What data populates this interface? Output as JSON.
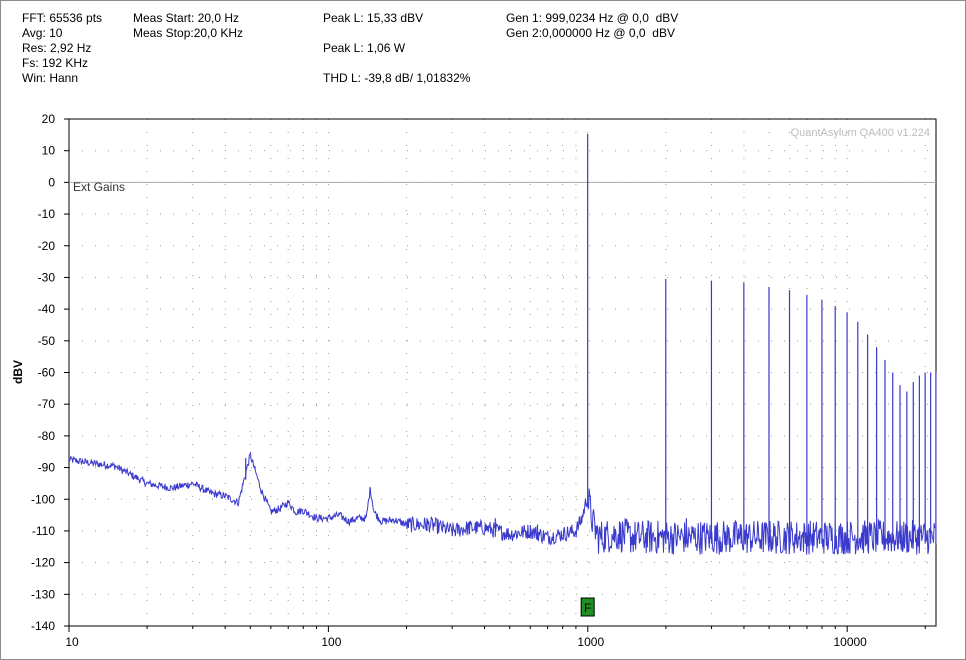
{
  "readouts": {
    "fft": "FFT: 65536 pts",
    "avg": "Avg: 10",
    "res": "Res: 2,92 Hz",
    "fs": "Fs: 192 KHz",
    "win": "Win: Hann",
    "meas_start": "Meas Start: 20,0 Hz",
    "meas_stop": "Meas Stop:20,0 KHz",
    "peak_l_dbv": "Peak L: 15,33 dBV",
    "peak_l_w": "Peak L: 1,06 W",
    "thd_l": "THD L: -39,8 dB/ 1,01832%",
    "gen1": "Gen 1: 999,0234 Hz @ 0,0  dBV",
    "gen2": "Gen 2:0,000000 Hz @ 0,0  dBV"
  },
  "chart_data": {
    "type": "line",
    "xscale": "log",
    "xlim": [
      10,
      22000
    ],
    "ylim": [
      -140,
      20
    ],
    "ylabel": "dBV",
    "xlabel": "",
    "title": "",
    "x_ticks": [
      "10",
      "100",
      "1000",
      "10000"
    ],
    "y_ticks": [
      "20",
      "10",
      "0",
      "-10",
      "-20",
      "-30",
      "-40",
      "-50",
      "-60",
      "-70",
      "-80",
      "-90",
      "-100",
      "-110",
      "-120",
      "-130",
      "-140"
    ],
    "grid": true,
    "watermark": "QuantAsylum QA400 v1.224",
    "overlay_label": "Ext Gains",
    "marker": {
      "label": "F",
      "x": 999,
      "color": "#1f8f1f"
    },
    "line_color": "#3a3acc",
    "reference_level": 0,
    "noise_floor": [
      [
        10,
        -87.5
      ],
      [
        12,
        -88.5
      ],
      [
        15,
        -89.5
      ],
      [
        18,
        -93
      ],
      [
        20,
        -95
      ],
      [
        25,
        -96.5
      ],
      [
        30,
        -95
      ],
      [
        35,
        -98
      ],
      [
        40,
        -99
      ],
      [
        45,
        -101
      ],
      [
        50,
        -86
      ],
      [
        55,
        -97
      ],
      [
        60,
        -104
      ],
      [
        65,
        -103
      ],
      [
        70,
        -101
      ],
      [
        75,
        -104
      ],
      [
        80,
        -103.5
      ],
      [
        90,
        -106
      ],
      [
        100,
        -106
      ],
      [
        110,
        -105
      ],
      [
        120,
        -107
      ],
      [
        130,
        -106
      ],
      [
        140,
        -106
      ],
      [
        145,
        -96.5
      ],
      [
        150,
        -104
      ],
      [
        160,
        -107
      ],
      [
        180,
        -106.5
      ],
      [
        200,
        -108
      ],
      [
        250,
        -108
      ],
      [
        300,
        -110
      ],
      [
        350,
        -109
      ],
      [
        400,
        -109
      ],
      [
        500,
        -111
      ],
      [
        600,
        -110
      ],
      [
        700,
        -112
      ],
      [
        800,
        -111
      ],
      [
        900,
        -110
      ],
      [
        950,
        -106
      ],
      [
        990,
        -100
      ],
      [
        1010,
        -101
      ],
      [
        1050,
        -108
      ],
      [
        1100,
        -112
      ],
      [
        1300,
        -111
      ],
      [
        1500,
        -112
      ],
      [
        2000,
        -112
      ],
      [
        3000,
        -112
      ],
      [
        5000,
        -112
      ],
      [
        8000,
        -112
      ],
      [
        12000,
        -112
      ],
      [
        16000,
        -112
      ],
      [
        22000,
        -112
      ]
    ],
    "spurs": [
      [
        48,
        -87
      ],
      [
        145,
        -96.5
      ],
      [
        240,
        -106
      ],
      [
        350,
        -107
      ],
      [
        440,
        -106
      ],
      [
        640,
        -108
      ],
      [
        1999,
        -110
      ],
      [
        2400,
        -106
      ],
      [
        3900,
        -108
      ]
    ],
    "peaks": [
      [
        999,
        15.3
      ],
      [
        1998,
        -30.5
      ],
      [
        2997,
        -31
      ],
      [
        3996,
        -31.5
      ],
      [
        4995,
        -33
      ],
      [
        5994,
        -34
      ],
      [
        6993,
        -35.5
      ],
      [
        7992,
        -37
      ],
      [
        8991,
        -39
      ],
      [
        9990,
        -41
      ],
      [
        10989,
        -44
      ],
      [
        11988,
        -48
      ],
      [
        12987,
        -52
      ],
      [
        13986,
        -56
      ],
      [
        14985,
        -60
      ],
      [
        15984,
        -64
      ],
      [
        16983,
        -66
      ],
      [
        17982,
        -63
      ],
      [
        18981,
        -61
      ],
      [
        19980,
        -60
      ],
      [
        20979,
        -60
      ],
      [
        21978,
        -60
      ]
    ]
  }
}
